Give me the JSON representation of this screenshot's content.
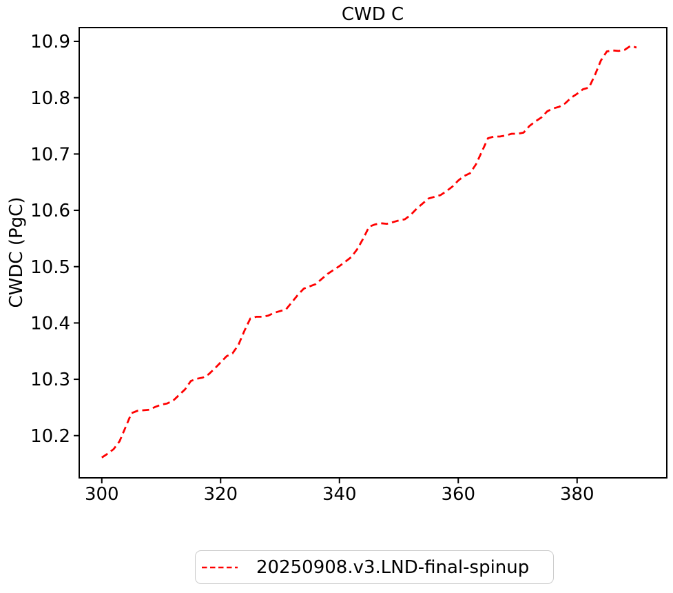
{
  "figure": {
    "background": "#ffffff",
    "border_color": "#000000"
  },
  "chart_data": {
    "type": "line",
    "title": "CWD C",
    "xlabel": "",
    "ylabel": "CWDC (PgC)",
    "grid": false,
    "legend_position": "below-center",
    "legend_edge_color": "#cccccc",
    "xlim": [
      296.2,
      395.1
    ],
    "ylim": [
      10.125,
      10.9245
    ],
    "xticks": [
      300,
      320,
      340,
      360,
      380
    ],
    "yticks": [
      10.2,
      10.3,
      10.4,
      10.5,
      10.6,
      10.7,
      10.8,
      10.9
    ],
    "series": [
      {
        "name": "20250908.v3.LND-final-spinup",
        "color": "#ff0000",
        "linestyle": "dashed",
        "x": [
          300,
          301,
          302,
          303,
          304,
          305,
          306,
          307,
          308,
          309,
          310,
          311,
          312,
          313,
          314,
          315,
          316,
          317,
          318,
          319,
          320,
          321,
          322,
          323,
          324,
          325,
          326,
          327,
          328,
          329,
          330,
          331,
          332,
          333,
          334,
          335,
          336,
          337,
          338,
          339,
          340,
          341,
          342,
          343,
          344,
          345,
          346,
          347,
          348,
          349,
          350,
          351,
          352,
          353,
          354,
          355,
          356,
          357,
          358,
          359,
          360,
          361,
          362,
          363,
          364,
          365,
          366,
          367,
          368,
          369,
          370,
          371,
          372,
          373,
          374,
          375,
          376,
          377,
          378,
          379,
          380,
          381,
          382,
          383,
          384,
          385,
          386,
          387,
          388,
          389,
          390
        ],
        "y": [
          10.161,
          10.168,
          10.176,
          10.19,
          10.215,
          10.24,
          10.244,
          10.245,
          10.246,
          10.251,
          10.255,
          10.257,
          10.262,
          10.272,
          10.282,
          10.297,
          10.301,
          10.303,
          10.309,
          10.319,
          10.33,
          10.341,
          10.346,
          10.361,
          10.386,
          10.408,
          10.411,
          10.411,
          10.413,
          10.418,
          10.421,
          10.424,
          10.437,
          10.45,
          10.461,
          10.465,
          10.469,
          10.478,
          10.487,
          10.494,
          10.501,
          10.509,
          10.517,
          10.531,
          10.55,
          10.571,
          10.575,
          10.577,
          10.576,
          10.579,
          10.582,
          10.584,
          10.592,
          10.603,
          10.612,
          10.621,
          10.624,
          10.627,
          10.634,
          10.642,
          10.653,
          10.661,
          10.666,
          10.682,
          10.705,
          10.728,
          10.731,
          10.731,
          10.733,
          10.736,
          10.736,
          10.738,
          10.75,
          10.758,
          10.765,
          10.776,
          10.781,
          10.784,
          10.79,
          10.8,
          10.807,
          10.815,
          10.818,
          10.84,
          10.866,
          10.882,
          10.884,
          10.883,
          10.885,
          10.892,
          10.889
        ]
      }
    ]
  }
}
